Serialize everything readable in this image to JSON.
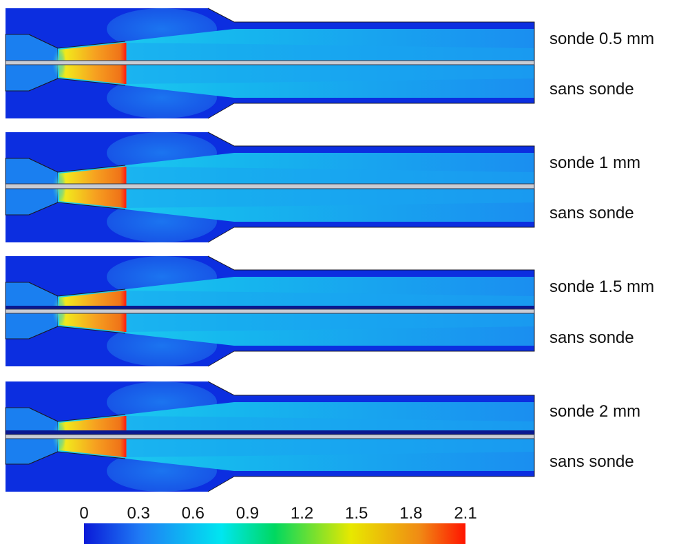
{
  "panels": [
    {
      "top_label": "sonde 0.5 mm",
      "bottom_label": "sans sonde",
      "probe_diameter_mm": 0.5
    },
    {
      "top_label": "sonde 1 mm",
      "bottom_label": "sans sonde",
      "probe_diameter_mm": 1
    },
    {
      "top_label": "sonde 1.5 mm",
      "bottom_label": "sans sonde",
      "probe_diameter_mm": 1.5
    },
    {
      "top_label": "sonde 2 mm",
      "bottom_label": "sans sonde",
      "probe_diameter_mm": 2
    }
  ],
  "colorbar": {
    "ticks": [
      "0",
      "0.3",
      "0.6",
      "0.9",
      "1.2",
      "1.5",
      "1.8",
      "2.1"
    ],
    "min": 0,
    "max": 2.1,
    "colors": [
      "#0a1ad8",
      "#1f7df5",
      "#00e6f0",
      "#00d860",
      "#e8e800",
      "#f08a14",
      "#ff1400"
    ]
  }
}
